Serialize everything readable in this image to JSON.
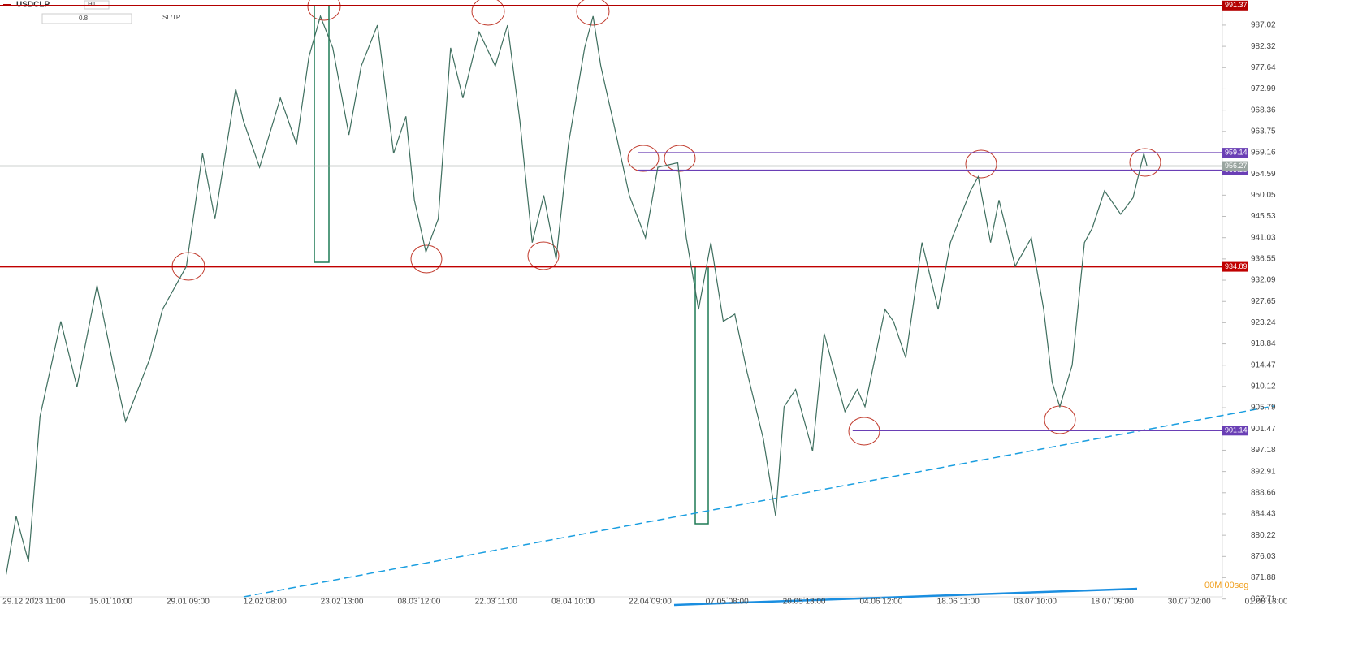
{
  "toolbar": {
    "symbol": "USDCLP",
    "timeframe": "H1",
    "volume": "0.8",
    "sltp": "SL/TP"
  },
  "chart_data": {
    "type": "line",
    "log_scale": true,
    "color": "#3f6f5f",
    "x": [
      -0.36,
      -0.23,
      -0.07,
      0.08,
      0.35,
      0.56,
      0.82,
      1.03,
      1.19,
      1.51,
      1.67,
      1.98,
      2.19,
      2.35,
      2.62,
      2.72,
      2.93,
      3.2,
      3.41,
      3.57,
      3.72,
      3.88,
      4.09,
      4.25,
      4.46,
      4.67,
      4.83,
      4.94,
      5.09,
      5.25,
      5.41,
      5.57,
      5.78,
      5.99,
      6.15,
      6.31,
      6.47,
      6.62,
      6.78,
      6.94,
      7.15,
      7.26,
      7.36,
      7.52,
      7.73,
      7.94,
      8.1,
      8.36,
      8.47,
      8.63,
      8.79,
      8.95,
      9.1,
      9.26,
      9.47,
      9.63,
      9.74,
      9.89,
      10.11,
      10.26,
      10.53,
      10.69,
      10.79,
      11.05,
      11.16,
      11.32,
      11.53,
      11.74,
      11.9,
      12.16,
      12.26,
      12.42,
      12.53,
      12.74,
      12.95,
      13.11,
      13.22,
      13.32,
      13.48,
      13.64,
      13.74,
      13.9,
      14.11,
      14.27,
      14.41,
      14.45
    ],
    "values": [
      872.5,
      884,
      875,
      904,
      923.5,
      910,
      931,
      914.5,
      903,
      916,
      926,
      935,
      959,
      945,
      973,
      966,
      956,
      971,
      961,
      980,
      989,
      982,
      963,
      978,
      987,
      959,
      967,
      949,
      938,
      945,
      982,
      971,
      985.5,
      978,
      987,
      966,
      940,
      950,
      936.5,
      961,
      982,
      989,
      978,
      966,
      950,
      941,
      956,
      957,
      941,
      926,
      940,
      923.5,
      925,
      913,
      899.5,
      884,
      906,
      909.5,
      897,
      921,
      905,
      909.5,
      906,
      926,
      923.5,
      916,
      940,
      926,
      940,
      951,
      954,
      940,
      949,
      935,
      941,
      926,
      911,
      906,
      914.5,
      940,
      943,
      951,
      946,
      949.5,
      959,
      956.3
    ],
    "xlim": [
      -0.44,
      15.43
    ],
    "xticks": [
      {
        "value": 0,
        "label": "29.12.2023 11:00"
      },
      {
        "value": 1,
        "label": "15.01 10:00"
      },
      {
        "value": 2,
        "label": "29.01 09:00"
      },
      {
        "value": 3,
        "label": "12.02 08:00"
      },
      {
        "value": 4,
        "label": "23.02 13:00"
      },
      {
        "value": 5,
        "label": "08.03 12:00"
      },
      {
        "value": 6,
        "label": "22.03 11:00"
      },
      {
        "value": 7,
        "label": "08.04 10:00"
      },
      {
        "value": 8,
        "label": "22.04 09:00"
      },
      {
        "value": 9,
        "label": "07.05 08:00"
      },
      {
        "value": 10,
        "label": "20.05 13:00"
      },
      {
        "value": 11,
        "label": "04.06 12:00"
      },
      {
        "value": 12,
        "label": "18.06 11:00"
      },
      {
        "value": 13,
        "label": "03.07 10:00"
      },
      {
        "value": 14,
        "label": "18.07 09:00"
      },
      {
        "value": 15,
        "label": "30.07 02:00"
      },
      {
        "value": 16,
        "label": "01.08 13:00"
      }
    ],
    "ylim": [
      867.5,
      992.6
    ],
    "yticks": [
      987.02,
      982.32,
      977.64,
      972.99,
      968.36,
      963.75,
      959.16,
      954.59,
      950.05,
      945.53,
      941.03,
      936.55,
      932.09,
      927.65,
      923.24,
      918.84,
      914.47,
      910.12,
      905.79,
      901.47,
      897.18,
      892.91,
      888.66,
      884.43,
      880.22,
      876.03,
      871.88,
      867.71
    ],
    "levels": [
      {
        "value": 991.37,
        "color": "#b30000",
        "x_start": -0.44
      },
      {
        "value": 959.14,
        "color": "#6a3fb5",
        "x_start": 7.84
      },
      {
        "value": 955.38,
        "color": "#6a3fb5",
        "x_start": 7.84
      },
      {
        "value": 934.89,
        "color": "#c00000",
        "x_start": -0.44
      },
      {
        "value": 901.14,
        "color": "#6a3fb5",
        "x_start": 10.63
      },
      {
        "value": 956.27,
        "color": "#9aa5a0",
        "x_start": -0.44
      }
    ],
    "timer": "00M 00seg"
  }
}
